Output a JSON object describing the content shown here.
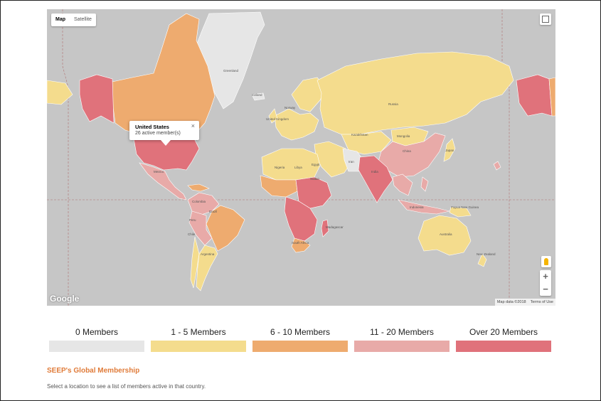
{
  "map": {
    "type_controls": [
      {
        "label": "Map",
        "active": true
      },
      {
        "label": "Satellite",
        "active": false
      }
    ],
    "colors": {
      "water": "#c6c6c6",
      "none": "#e6e6e6",
      "tier1": "#f4dc8d",
      "tier2": "#eeab6f",
      "tier3": "#e8aaa8",
      "tier4": "#e0727b"
    },
    "icons": {
      "fullscreen": "fullscreen-icon",
      "pegman": "pegman-icon",
      "zoom_in": "+",
      "zoom_out": "−"
    },
    "info_window": {
      "title": "United States",
      "subtitle": "26 active member(s)",
      "close": "×"
    },
    "labels": {
      "greenland": "Greenland",
      "russia": "Russia",
      "iceland": "Iceland",
      "norway": "Norway",
      "uk": "United Kingdom",
      "kazakhstan": "Kazakhstan",
      "mongolia": "Mongolia",
      "china": "China",
      "iran": "Iran",
      "india": "India",
      "japan": "Japan",
      "nigeria": "Nigeria",
      "libya": "Libya",
      "egypt": "Egypt",
      "sudan": "Sudan",
      "mexico": "Mexico",
      "colombia": "Colombia",
      "brazil": "Brazil",
      "peru": "Peru",
      "argentina": "Argentina",
      "chile": "Chile",
      "indonesia": "Indonesia",
      "australia": "Australia",
      "png": "Papua New Guinea",
      "madagascar": "Madagascar",
      "south_africa": "South Africa",
      "new_zealand": "New Zealand"
    },
    "google": "Google",
    "attribution": [
      "Map data ©2018",
      "Terms of Use"
    ]
  },
  "legend": [
    {
      "label": "0 Members",
      "color": "#e6e6e6"
    },
    {
      "label": "1 - 5 Members",
      "color": "#f4dc8d"
    },
    {
      "label": "6 - 10 Members",
      "color": "#eeab6f"
    },
    {
      "label": "11 - 20 Members",
      "color": "#e8aaa8"
    },
    {
      "label": "Over 20 Members",
      "color": "#e0727b"
    }
  ],
  "section": {
    "title": "SEEP's Global Membership",
    "description": "Select a location to see a list of members active in that country."
  }
}
